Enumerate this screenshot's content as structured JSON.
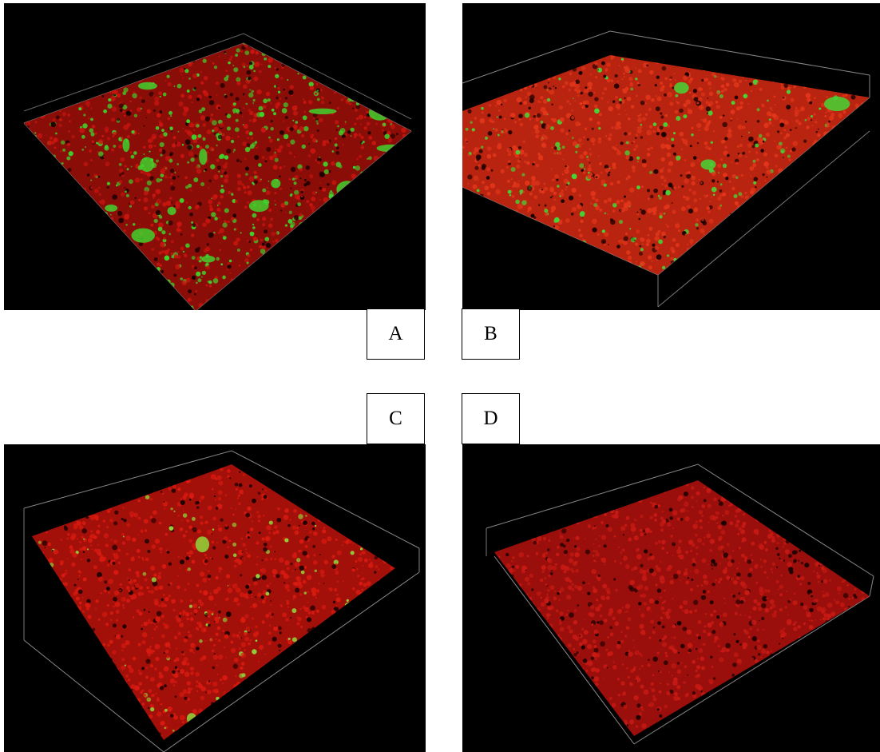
{
  "panels": [
    {
      "id": "A",
      "label": "A",
      "colors": {
        "background": "#000000",
        "primary": "#c8150f",
        "secondary": "#3fd22b",
        "grid": "#9a9a9a"
      },
      "secondary_fraction": 0.42
    },
    {
      "id": "B",
      "label": "B",
      "colors": {
        "background": "#000000",
        "primary": "#e2361a",
        "secondary": "#45d636",
        "grid": "#9a9a9a"
      },
      "secondary_fraction": 0.18
    },
    {
      "id": "C",
      "label": "C",
      "colors": {
        "background": "#000000",
        "primary": "#d81a10",
        "secondary": "#8fd83a",
        "grid": "#9a9a9a"
      },
      "secondary_fraction": 0.07
    },
    {
      "id": "D",
      "label": "D",
      "colors": {
        "background": "#000000",
        "primary": "#c81a14",
        "secondary": "#e04a2a",
        "grid": "#9a9a9a"
      },
      "secondary_fraction": 0.0
    }
  ]
}
